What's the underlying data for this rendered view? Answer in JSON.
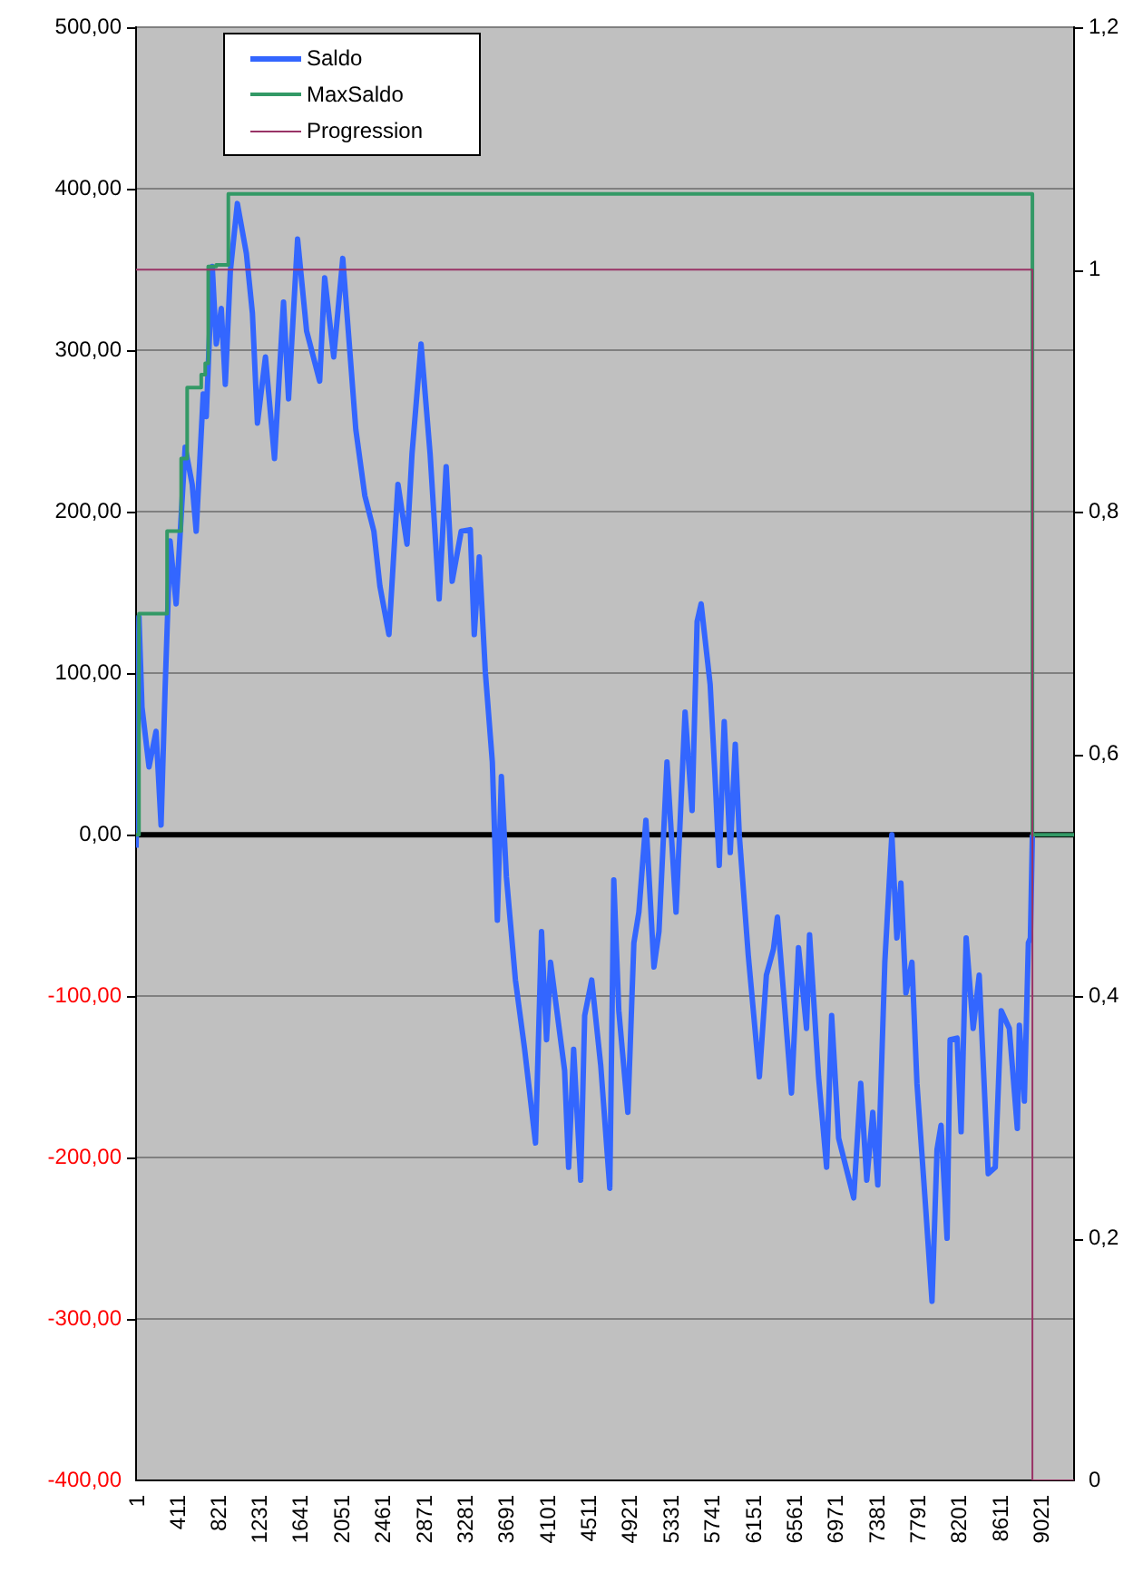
{
  "chart_data": {
    "type": "line",
    "xlim": [
      1,
      9345
    ],
    "xticks": [
      1,
      411,
      821,
      1231,
      1641,
      2051,
      2461,
      2871,
      3281,
      3691,
      4101,
      4511,
      4921,
      5331,
      5741,
      6151,
      6561,
      6971,
      7381,
      7791,
      8201,
      8611,
      9021
    ],
    "ylim": [
      -400,
      500
    ],
    "yticks": [
      {
        "value": -400,
        "label": "-400,00"
      },
      {
        "value": -300,
        "label": "-300,00"
      },
      {
        "value": -200,
        "label": "-200,00"
      },
      {
        "value": -100,
        "label": "-100,00"
      },
      {
        "value": 0,
        "label": "0,00"
      },
      {
        "value": 100,
        "label": "100,00"
      },
      {
        "value": 200,
        "label": "200,00"
      },
      {
        "value": 300,
        "label": "300,00"
      },
      {
        "value": 400,
        "label": "400,00"
      },
      {
        "value": 500,
        "label": "500,00"
      }
    ],
    "y2lim": [
      0,
      1.2
    ],
    "y2ticks": [
      0,
      {
        "value": 0.2,
        "label": "0,2"
      },
      {
        "value": 0.4,
        "label": "0,4"
      },
      {
        "value": 0.6,
        "label": "0,6"
      },
      {
        "value": 0.8,
        "label": "0,8"
      },
      1,
      {
        "value": 1.2,
        "label": "1,2"
      }
    ],
    "grid": "y",
    "legend": "top left",
    "ref_lines": [
      {
        "axis": "y",
        "value": 0,
        "color": "#000000"
      }
    ],
    "series": [
      {
        "name": "Saldo",
        "type": "line",
        "color": "#3366ff",
        "x": [
          1,
          30,
          60,
          130,
          200,
          250,
          290,
          340,
          400,
          490,
          560,
          600,
          670,
          700,
          760,
          800,
          850,
          890,
          940,
          1010,
          1100,
          1160,
          1210,
          1290,
          1380,
          1470,
          1520,
          1610,
          1700,
          1830,
          1880,
          1970,
          2060,
          2190,
          2280,
          2370,
          2430,
          2520,
          2610,
          2700,
          2750,
          2840,
          2930,
          3020,
          3090,
          3150,
          3240,
          3330,
          3370,
          3420,
          3480,
          3550,
          3600,
          3640,
          3690,
          3780,
          3870,
          3980,
          4040,
          4090,
          4130,
          4270,
          4310,
          4360,
          4430,
          4470,
          4540,
          4630,
          4720,
          4760,
          4810,
          4900,
          4960,
          5010,
          5080,
          5160,
          5210,
          5290,
          5380,
          5470,
          5540,
          5590,
          5630,
          5720,
          5770,
          5810,
          5860,
          5920,
          5970,
          6010,
          6100,
          6210,
          6280,
          6350,
          6390,
          6460,
          6530,
          6600,
          6680,
          6710,
          6800,
          6880,
          6930,
          7000,
          7150,
          7220,
          7280,
          7340,
          7390,
          7460,
          7530,
          7580,
          7620,
          7670,
          7730,
          7780,
          7860,
          7930,
          7980,
          8020,
          8080,
          8110,
          8180,
          8220,
          8270,
          8340,
          8400,
          8490,
          8560,
          8620,
          8700,
          8780,
          8800,
          8850,
          8890,
          8910,
          8930
        ],
        "values": [
          -8,
          135,
          79,
          42,
          64,
          6,
          90,
          182,
          143,
          240,
          217,
          188,
          273,
          259,
          352,
          304,
          326,
          279,
          349,
          391,
          360,
          323,
          255,
          296,
          233,
          330,
          270,
          369,
          312,
          281,
          345,
          296,
          357,
          251,
          210,
          188,
          154,
          124,
          217,
          180,
          236,
          304,
          236,
          146,
          228,
          157,
          188,
          189,
          124,
          172,
          101,
          45,
          -53,
          36,
          -26,
          -90,
          -132,
          -191,
          -60,
          -127,
          -79,
          -146,
          -206,
          -133,
          -214,
          -112,
          -90,
          -143,
          -219,
          -28,
          -109,
          -172,
          -67,
          -48,
          9,
          -82,
          -60,
          45,
          -48,
          76,
          15,
          132,
          143,
          93,
          34,
          -19,
          70,
          -11,
          56,
          0,
          -75,
          -150,
          -87,
          -71,
          -51,
          -105,
          -160,
          -70,
          -120,
          -62,
          -150,
          -206,
          -112,
          -188,
          -225,
          -154,
          -214,
          -172,
          -217,
          -79,
          0,
          -64,
          -30,
          -98,
          -79,
          -154,
          -225,
          -289,
          -195,
          -180,
          -250,
          -127,
          -126,
          -184,
          -64,
          -120,
          -87,
          -210,
          -206,
          -109,
          -120,
          -182,
          -118,
          -165,
          -67,
          -64,
          0
        ]
      },
      {
        "name": "MaxSaldo",
        "type": "step",
        "color": "#339966",
        "x": [
          1,
          30,
          310,
          450,
          510,
          650,
          690,
          720,
          800,
          920,
          8930,
          9345
        ],
        "values": [
          0,
          0,
          137,
          188,
          233,
          277,
          285,
          292,
          352,
          353,
          397,
          0
        ]
      },
      {
        "name": "Progression",
        "type": "step",
        "axis": "y2",
        "color": "#993366",
        "x": [
          1,
          8930,
          9345
        ],
        "values": [
          1,
          1,
          0
        ]
      }
    ]
  }
}
